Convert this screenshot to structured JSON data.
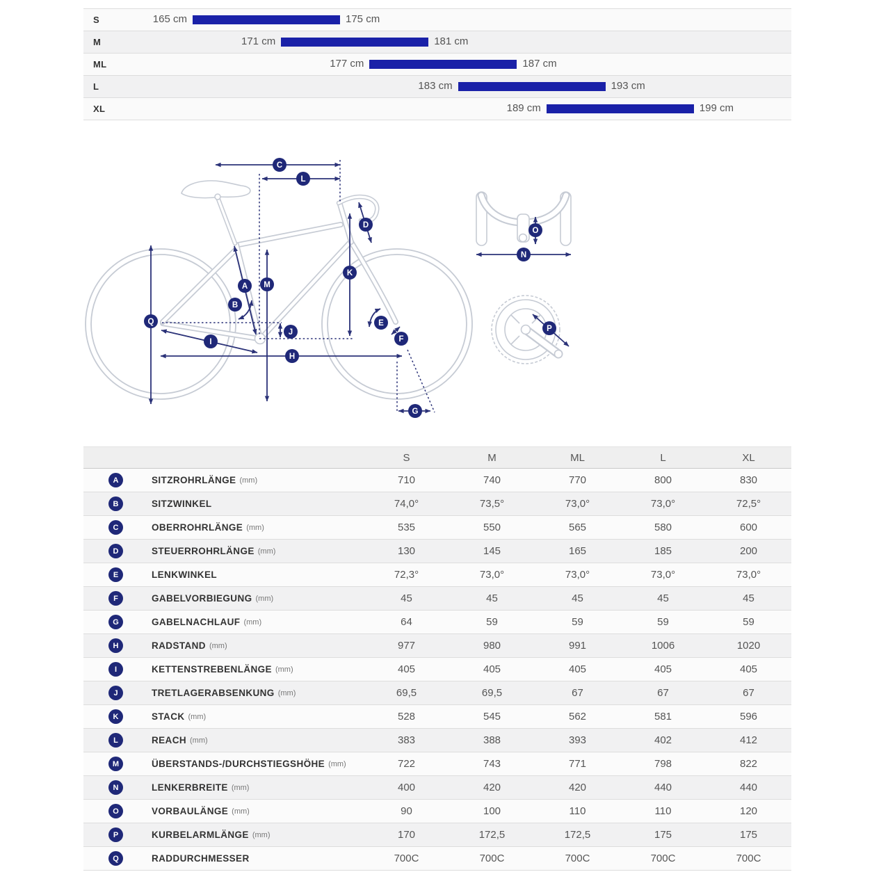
{
  "colors": {
    "bar_blue": "#1a21a8",
    "badge_navy": "#1f2878",
    "arrow_navy": "#2b3278",
    "bike_outline_gray": "#c6cbd4",
    "row_alt_gray": "#f1f1f2",
    "header_gray": "#efefef",
    "text_gray": "#555555",
    "label_dark": "#333333"
  },
  "size_chart": {
    "unit": "cm",
    "rows": [
      {
        "size": "S",
        "min": 165,
        "max": 175,
        "min_label": "165 cm",
        "max_label": "175 cm"
      },
      {
        "size": "M",
        "min": 171,
        "max": 181,
        "min_label": "171 cm",
        "max_label": "181 cm"
      },
      {
        "size": "ML",
        "min": 177,
        "max": 187,
        "min_label": "177 cm",
        "max_label": "187 cm"
      },
      {
        "size": "L",
        "min": 183,
        "max": 193,
        "min_label": "183 cm",
        "max_label": "193 cm"
      },
      {
        "size": "XL",
        "min": 189,
        "max": 199,
        "min_label": "189 cm",
        "max_label": "199 cm"
      }
    ]
  },
  "diagram": {
    "markers": [
      "C",
      "L",
      "D",
      "K",
      "A",
      "M",
      "B",
      "Q",
      "E",
      "J",
      "F",
      "I",
      "H",
      "G",
      "O",
      "N",
      "P"
    ]
  },
  "geometry_table": {
    "columns": [
      "S",
      "M",
      "ML",
      "L",
      "XL"
    ],
    "rows": [
      {
        "key": "A",
        "label": "SITZROHRLÄNGE",
        "unit": "(mm)",
        "values": [
          "710",
          "740",
          "770",
          "800",
          "830"
        ]
      },
      {
        "key": "B",
        "label": "SITZWINKEL",
        "unit": "",
        "values": [
          "74,0°",
          "73,5°",
          "73,0°",
          "73,0°",
          "72,5°"
        ]
      },
      {
        "key": "C",
        "label": "OBERROHRLÄNGE",
        "unit": "(mm)",
        "values": [
          "535",
          "550",
          "565",
          "580",
          "600"
        ]
      },
      {
        "key": "D",
        "label": "STEUERROHRLÄNGE",
        "unit": "(mm)",
        "values": [
          "130",
          "145",
          "165",
          "185",
          "200"
        ]
      },
      {
        "key": "E",
        "label": "LENKWINKEL",
        "unit": "",
        "values": [
          "72,3°",
          "73,0°",
          "73,0°",
          "73,0°",
          "73,0°"
        ]
      },
      {
        "key": "F",
        "label": "GABELVORBIEGUNG",
        "unit": "(mm)",
        "values": [
          "45",
          "45",
          "45",
          "45",
          "45"
        ]
      },
      {
        "key": "G",
        "label": "GABELNACHLAUF",
        "unit": "(mm)",
        "values": [
          "64",
          "59",
          "59",
          "59",
          "59"
        ]
      },
      {
        "key": "H",
        "label": "RADSTAND",
        "unit": "(mm)",
        "values": [
          "977",
          "980",
          "991",
          "1006",
          "1020"
        ]
      },
      {
        "key": "I",
        "label": "KETTENSTREBENLÄNGE",
        "unit": "(mm)",
        "values": [
          "405",
          "405",
          "405",
          "405",
          "405"
        ]
      },
      {
        "key": "J",
        "label": "TRETLAGERABSENKUNG",
        "unit": "(mm)",
        "values": [
          "69,5",
          "69,5",
          "67",
          "67",
          "67"
        ]
      },
      {
        "key": "K",
        "label": "STACK",
        "unit": "(mm)",
        "values": [
          "528",
          "545",
          "562",
          "581",
          "596"
        ]
      },
      {
        "key": "L",
        "label": "REACH",
        "unit": "(mm)",
        "values": [
          "383",
          "388",
          "393",
          "402",
          "412"
        ]
      },
      {
        "key": "M",
        "label": "ÜBERSTANDS-/DURCHSTIEGSHÖHE",
        "unit": "(mm)",
        "values": [
          "722",
          "743",
          "771",
          "798",
          "822"
        ]
      },
      {
        "key": "N",
        "label": "LENKERBREITE",
        "unit": "(mm)",
        "values": [
          "400",
          "420",
          "420",
          "440",
          "440"
        ]
      },
      {
        "key": "O",
        "label": "VORBAULÄNGE",
        "unit": "(mm)",
        "values": [
          "90",
          "100",
          "110",
          "110",
          "120"
        ]
      },
      {
        "key": "P",
        "label": "KURBELARMLÄNGE",
        "unit": "(mm)",
        "values": [
          "170",
          "172,5",
          "172,5",
          "175",
          "175"
        ]
      },
      {
        "key": "Q",
        "label": "RADDURCHMESSER",
        "unit": "",
        "values": [
          "700C",
          "700C",
          "700C",
          "700C",
          "700C"
        ]
      }
    ]
  },
  "chart_data": {
    "type": "bar",
    "orientation": "horizontal",
    "title": "Rider height range per frame size",
    "unit": "cm",
    "categories": [
      "S",
      "M",
      "ML",
      "L",
      "XL"
    ],
    "ranges": [
      [
        165,
        175
      ],
      [
        171,
        181
      ],
      [
        177,
        187
      ],
      [
        183,
        193
      ],
      [
        189,
        199
      ]
    ],
    "xlim": [
      158,
      205
    ],
    "grid": false,
    "legend": false
  }
}
